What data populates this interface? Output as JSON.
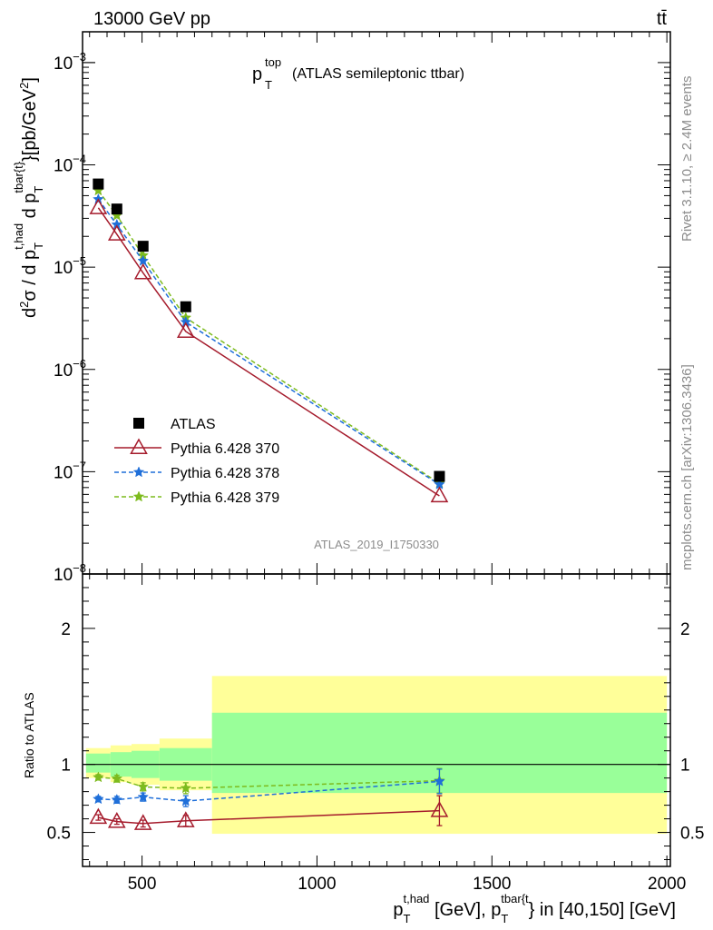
{
  "header": {
    "energy_label": "13000 GeV pp",
    "process_label": "tt̄"
  },
  "side": {
    "rivet_label": "Rivet 3.1.10, ≥ 2.4M events",
    "mcplots_label": "mcplots.cern.ch [arXiv:1306.3436]"
  },
  "chart_data": [
    {
      "type": "scatter",
      "panel": "main",
      "title_main": "p",
      "title_sup": "top",
      "title_sub": "T",
      "title_rest": "(ATLAS semileptonic ttbar)",
      "analysis_label": "ATLAS_2019_I1750330",
      "ylabel": "d²σ / d p_T^{t,had} d p_T^{tbar{t}} [pb/GeV²]",
      "yscale": "log",
      "ylim": [
        1e-08,
        0.002
      ],
      "xlim": [
        330,
        2010
      ],
      "ytick_labels": [
        "10",
        "10",
        "10",
        "10",
        "10",
        "10"
      ],
      "ytick_exps": [
        "−3",
        "−4",
        "−5",
        "−6",
        "−7",
        "−8"
      ],
      "ytick_values": [
        0.001,
        0.0001,
        1e-05,
        1e-06,
        1e-07,
        1e-08
      ],
      "legend_position": "center-left",
      "series": [
        {
          "name": "ATLAS",
          "color": "#000000",
          "marker": "square",
          "line": "none",
          "x": [
            375,
            428,
            503,
            625,
            1350
          ],
          "y": [
            6.5e-05,
            3.7e-05,
            1.6e-05,
            4.1e-06,
            9e-08
          ]
        },
        {
          "name": "Pythia 6.428 370",
          "color": "#a51b2c",
          "marker": "triangle-open",
          "line": "solid",
          "x": [
            375,
            428,
            503,
            625,
            1350
          ],
          "y": [
            3.8e-05,
            2.1e-05,
            8.8e-06,
            2.35e-06,
            5.8e-08
          ]
        },
        {
          "name": "Pythia 6.428 378",
          "color": "#1f6fd9",
          "marker": "star",
          "line": "dashed",
          "x": [
            375,
            428,
            503,
            625,
            1350
          ],
          "y": [
            4.6e-05,
            2.6e-05,
            1.15e-05,
            2.9e-06,
            7.5e-08
          ]
        },
        {
          "name": "Pythia 6.428 379",
          "color": "#7dbb1e",
          "marker": "star",
          "line": "dashed",
          "x": [
            375,
            428,
            503,
            625,
            1350
          ],
          "y": [
            5.6e-05,
            3.2e-05,
            1.3e-05,
            3.2e-06,
            7.7e-08
          ]
        }
      ]
    },
    {
      "type": "scatter",
      "panel": "ratio",
      "ylabel": "Ratio to ATLAS",
      "xlabel": "p_T^{t,had} [GeV], p_T^{tbar{t}} in [40,150] [GeV]",
      "ylim": [
        0.25,
        2.4
      ],
      "xlim": [
        330,
        2010
      ],
      "xtick_labels": [
        "500",
        "1000",
        "1500",
        "2000"
      ],
      "xtick_values": [
        500,
        1000,
        1500,
        2000
      ],
      "ytick_labels": [
        "0.5",
        "1",
        "2"
      ],
      "ytick_values": [
        0.5,
        1,
        2
      ],
      "bands": [
        {
          "x0": 340,
          "x1": 410,
          "green": [
            0.94,
            1.08
          ],
          "yellow": [
            0.9,
            1.12
          ]
        },
        {
          "x0": 410,
          "x1": 470,
          "green": [
            0.91,
            1.09
          ],
          "yellow": [
            0.87,
            1.14
          ]
        },
        {
          "x0": 470,
          "x1": 550,
          "green": [
            0.9,
            1.1
          ],
          "yellow": [
            0.85,
            1.15
          ]
        },
        {
          "x0": 550,
          "x1": 700,
          "green": [
            0.88,
            1.12
          ],
          "yellow": [
            0.81,
            1.19
          ]
        },
        {
          "x0": 700,
          "x1": 2000,
          "green": [
            0.79,
            1.38
          ],
          "yellow": [
            0.49,
            1.65
          ]
        }
      ],
      "series": [
        {
          "name": "Pythia 6.428 370",
          "color": "#a51b2c",
          "marker": "triangle-open",
          "line": "solid",
          "x": [
            375,
            428,
            503,
            625,
            1350
          ],
          "y": [
            0.61,
            0.58,
            0.565,
            0.585,
            0.66
          ],
          "err": [
            0.02,
            0.02,
            0.025,
            0.04,
            0.11
          ]
        },
        {
          "name": "Pythia 6.428 378",
          "color": "#1f6fd9",
          "marker": "star",
          "line": "dashed",
          "x": [
            375,
            428,
            503,
            625,
            1350
          ],
          "y": [
            0.745,
            0.74,
            0.76,
            0.73,
            0.875
          ],
          "err": [
            0.02,
            0.025,
            0.03,
            0.04,
            0.09
          ]
        },
        {
          "name": "Pythia 6.428 379",
          "color": "#7dbb1e",
          "marker": "star",
          "line": "dashed",
          "x": [
            375,
            428,
            503,
            625,
            1350
          ],
          "y": [
            0.905,
            0.895,
            0.835,
            0.825,
            0.88
          ],
          "err": [
            0.02,
            0.025,
            0.03,
            0.04,
            0.09
          ]
        }
      ]
    }
  ]
}
